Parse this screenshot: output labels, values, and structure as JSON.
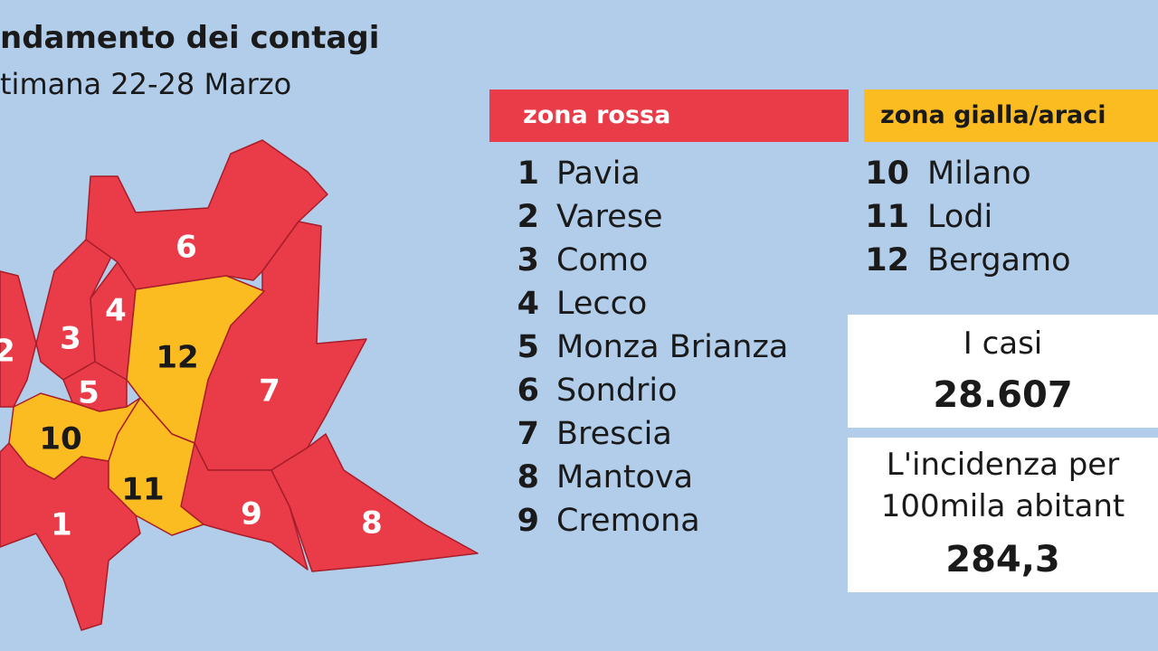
{
  "header": {
    "title": "ndamento dei contagi",
    "subtitle": "timana 22-28 Marzo"
  },
  "zones": [
    {
      "label": "zona rossa",
      "items": [
        {
          "number": 1,
          "name": "Pavia"
        },
        {
          "number": 2,
          "name": "Varese"
        },
        {
          "number": 3,
          "name": "Como"
        },
        {
          "number": 4,
          "name": "Lecco"
        },
        {
          "number": 5,
          "name": "Monza Brianza"
        },
        {
          "number": 6,
          "name": "Sondrio"
        },
        {
          "number": 7,
          "name": "Brescia"
        },
        {
          "number": 8,
          "name": "Mantova"
        },
        {
          "number": 9,
          "name": "Cremona"
        }
      ]
    },
    {
      "label": "zona gialla/araci",
      "items": [
        {
          "number": 10,
          "name": "Milano"
        },
        {
          "number": 11,
          "name": "Lodi"
        },
        {
          "number": 12,
          "name": "Bergamo"
        }
      ]
    }
  ],
  "stats": [
    {
      "label": "I casi",
      "value": "28.607"
    },
    {
      "label": "L'incidenza per",
      "label2": "100mila abitant",
      "value": "284,3"
    }
  ],
  "map": {
    "labels": [
      "1",
      "2",
      "3",
      "4",
      "5",
      "6",
      "7",
      "8",
      "9",
      "10",
      "11",
      "12"
    ]
  }
}
